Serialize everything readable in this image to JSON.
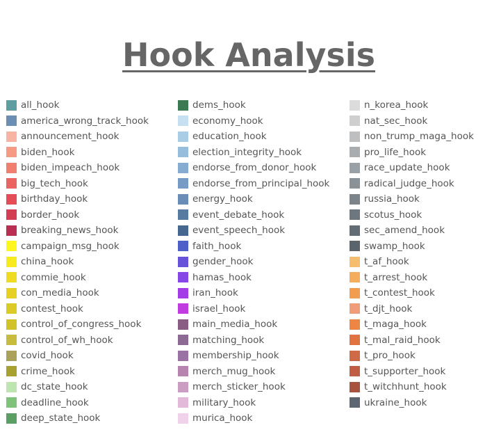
{
  "title": "Hook Analysis",
  "legend": {
    "columns": [
      [
        {
          "label": "all_hook",
          "color": "#5f9ea0"
        },
        {
          "label": "america_wrong_track_hook",
          "color": "#6a8fb3"
        },
        {
          "label": "announcement_hook",
          "color": "#f7b3a3"
        },
        {
          "label": "biden_hook",
          "color": "#f59a83"
        },
        {
          "label": "biden_impeach_hook",
          "color": "#f07f70"
        },
        {
          "label": "big_tech_hook",
          "color": "#ec6461"
        },
        {
          "label": "birthday_hook",
          "color": "#e44d57"
        },
        {
          "label": "border_hook",
          "color": "#d33e55"
        },
        {
          "label": "breaking_news_hook",
          "color": "#b92e55"
        },
        {
          "label": "campaign_msg_hook",
          "color": "#fff51f"
        },
        {
          "label": "china_hook",
          "color": "#f7ea1f"
        },
        {
          "label": "commie_hook",
          "color": "#eedb22"
        },
        {
          "label": "con_media_hook",
          "color": "#e5d023"
        },
        {
          "label": "contest_hook",
          "color": "#dccb26"
        },
        {
          "label": "control_of_congress_hook",
          "color": "#d2c229"
        },
        {
          "label": "control_of_wh_hook",
          "color": "#c8bc3e"
        },
        {
          "label": "covid_hook",
          "color": "#aaa15a"
        },
        {
          "label": "crime_hook",
          "color": "#a8a12f"
        },
        {
          "label": "dc_state_hook",
          "color": "#bde5b1"
        },
        {
          "label": "deadline_hook",
          "color": "#7fc37b"
        },
        {
          "label": "deep_state_hook",
          "color": "#5a9f63"
        }
      ],
      [
        {
          "label": "dems_hook",
          "color": "#3b7a53"
        },
        {
          "label": "economy_hook",
          "color": "#c6e0f2"
        },
        {
          "label": "education_hook",
          "color": "#aacde6"
        },
        {
          "label": "election_integrity_hook",
          "color": "#97bddc"
        },
        {
          "label": "endorse_from_donor_hook",
          "color": "#86acd2"
        },
        {
          "label": "endorse_from_principal_hook",
          "color": "#769cc6"
        },
        {
          "label": "energy_hook",
          "color": "#6a8db8"
        },
        {
          "label": "event_debate_hook",
          "color": "#577ba1"
        },
        {
          "label": "event_speech_hook",
          "color": "#46678f"
        },
        {
          "label": "faith_hook",
          "color": "#4f60c8"
        },
        {
          "label": "gender_hook",
          "color": "#6653d9"
        },
        {
          "label": "hamas_hook",
          "color": "#8647e6"
        },
        {
          "label": "iran_hook",
          "color": "#a33de8"
        },
        {
          "label": "israel_hook",
          "color": "#c03be0"
        },
        {
          "label": "main_media_hook",
          "color": "#8a5d85"
        },
        {
          "label": "matching_hook",
          "color": "#8c6a94"
        },
        {
          "label": "membership_hook",
          "color": "#9a72a3"
        },
        {
          "label": "merch_mug_hook",
          "color": "#b784b0"
        },
        {
          "label": "merch_sticker_hook",
          "color": "#cc9dc3"
        },
        {
          "label": "military_hook",
          "color": "#e3b9da"
        },
        {
          "label": "murica_hook",
          "color": "#f0d3ea"
        }
      ],
      [
        {
          "label": "n_korea_hook",
          "color": "#dcdcdc"
        },
        {
          "label": "nat_sec_hook",
          "color": "#cfcfcf"
        },
        {
          "label": "non_trump_maga_hook",
          "color": "#bdbfc0"
        },
        {
          "label": "pro_life_hook",
          "color": "#a9adb0"
        },
        {
          "label": "race_update_hook",
          "color": "#9aa1a6"
        },
        {
          "label": "radical_judge_hook",
          "color": "#8b9297"
        },
        {
          "label": "russia_hook",
          "color": "#7c848a"
        },
        {
          "label": "scotus_hook",
          "color": "#6f777e"
        },
        {
          "label": "sec_amend_hook",
          "color": "#656d74"
        },
        {
          "label": "swamp_hook",
          "color": "#5b636b"
        },
        {
          "label": "t_af_hook",
          "color": "#f6bd6f"
        },
        {
          "label": "t_arrest_hook",
          "color": "#f3ad5c"
        },
        {
          "label": "t_contest_hook",
          "color": "#f19c4e"
        },
        {
          "label": "t_djt_hook",
          "color": "#f09d7b"
        },
        {
          "label": "t_maga_hook",
          "color": "#ed8644"
        },
        {
          "label": "t_mal_raid_hook",
          "color": "#e0733f"
        },
        {
          "label": "t_pro_hook",
          "color": "#cf6a46"
        },
        {
          "label": "t_supporter_hook",
          "color": "#bf5e44"
        },
        {
          "label": "t_witchhunt_hook",
          "color": "#a85340"
        },
        {
          "label": "ukraine_hook",
          "color": "#5d6670"
        }
      ]
    ]
  }
}
